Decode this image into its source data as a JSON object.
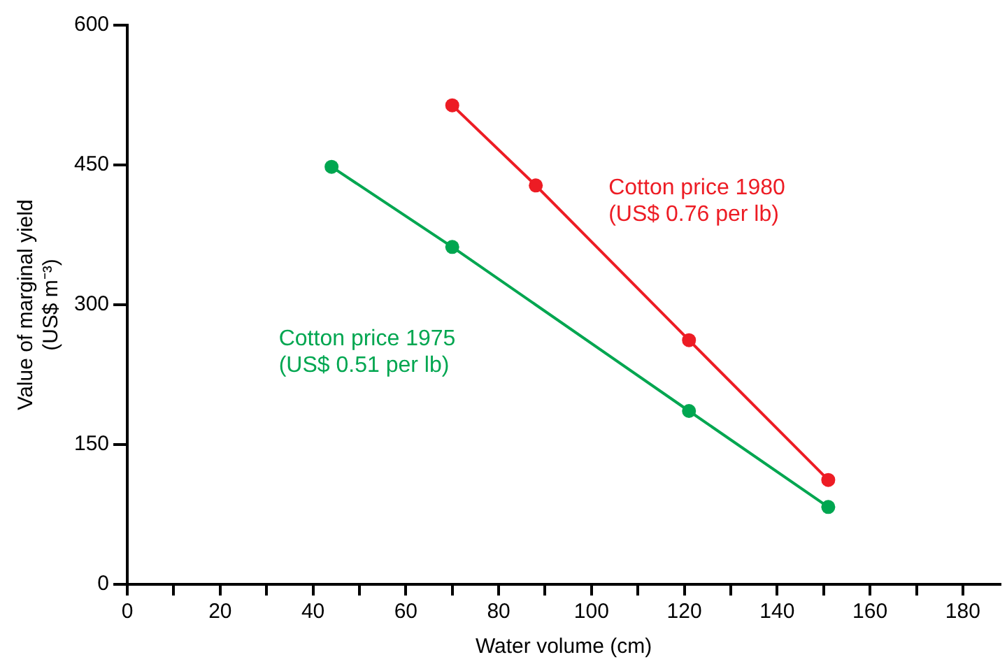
{
  "chart_data": {
    "type": "line",
    "xlabel": "Water volume (cm)",
    "ylabel": "Value of marginal yield\n(US$ m⁻³)",
    "xlim": [
      0,
      188
    ],
    "xticks": [
      0,
      {
        "value": 10,
        "label": null
      },
      20,
      {
        "value": 30,
        "label": null
      },
      40,
      {
        "value": 50,
        "label": null
      },
      60,
      {
        "value": 70,
        "label": null
      },
      80,
      {
        "value": 90,
        "label": null
      },
      100,
      {
        "value": 110,
        "label": null
      },
      120,
      {
        "value": 130,
        "label": null
      },
      140,
      {
        "value": 150,
        "label": null
      },
      160,
      {
        "value": 170,
        "label": null
      },
      180
    ],
    "ylim": [
      0,
      600
    ],
    "yticks": [
      0,
      150,
      300,
      450,
      600
    ],
    "grid": false,
    "marker": "circle",
    "line_style": "solid",
    "series": [
      {
        "name": "Cotton price 1980\n(US$ 0.76 per lb)",
        "color": "#ed1c24",
        "x": [
          70,
          88,
          121,
          151
        ],
        "values": [
          514,
          428,
          262,
          112
        ]
      },
      {
        "name": "Cotton price 1975\n(US$ 0.51 per lb)",
        "color": "#00a650",
        "x": [
          44,
          70,
          121,
          151
        ],
        "values": [
          448,
          362,
          186,
          83
        ]
      }
    ]
  }
}
